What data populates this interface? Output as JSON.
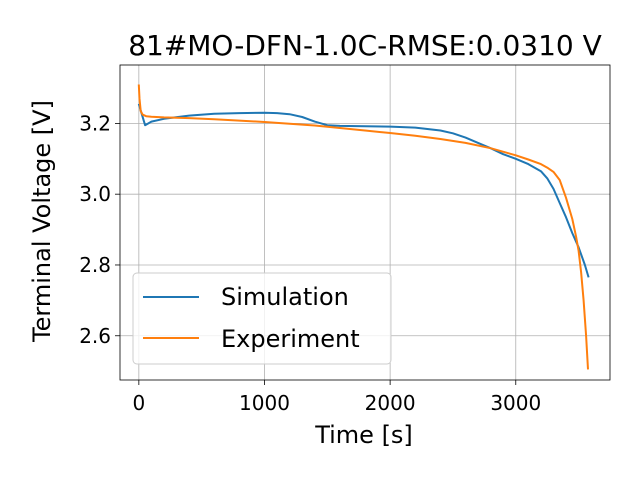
{
  "chart_data": {
    "type": "line",
    "title": "81#MO-DFN-1.0C-RMSE:0.0310 V",
    "xlabel": "Time [s]",
    "ylabel": "Terminal Voltage [V]",
    "xlim": [
      -150,
      3750
    ],
    "ylim": [
      2.475,
      3.365
    ],
    "xticks": [
      0,
      1000,
      2000,
      3000
    ],
    "xtick_labels": [
      "0",
      "1000",
      "2000",
      "3000"
    ],
    "yticks": [
      2.6,
      2.8,
      3.0,
      3.2
    ],
    "ytick_labels": [
      "2.6",
      "2.8",
      "3.0",
      "3.2"
    ],
    "grid": true,
    "legend_position": "lower-left",
    "series": [
      {
        "name": "Simulation",
        "color": "#1f77b4",
        "x": [
          0,
          20,
          50,
          100,
          200,
          400,
          600,
          800,
          1000,
          1100,
          1200,
          1300,
          1400,
          1500,
          1600,
          1800,
          2000,
          2200,
          2400,
          2500,
          2600,
          2700,
          2800,
          2900,
          3000,
          3100,
          3200,
          3250,
          3300,
          3350,
          3400,
          3450,
          3500,
          3550,
          3580
        ],
        "y": [
          3.255,
          3.23,
          3.195,
          3.205,
          3.213,
          3.222,
          3.227,
          3.229,
          3.23,
          3.229,
          3.226,
          3.218,
          3.205,
          3.195,
          3.193,
          3.192,
          3.191,
          3.188,
          3.18,
          3.172,
          3.16,
          3.145,
          3.13,
          3.113,
          3.1,
          3.085,
          3.065,
          3.045,
          3.015,
          2.975,
          2.935,
          2.89,
          2.85,
          2.8,
          2.765
        ]
      },
      {
        "name": "Experiment",
        "color": "#ff7f0e",
        "x": [
          0,
          5,
          15,
          30,
          60,
          100,
          200,
          400,
          600,
          800,
          1000,
          1200,
          1400,
          1600,
          1800,
          2000,
          2200,
          2400,
          2600,
          2800,
          3000,
          3100,
          3200,
          3250,
          3300,
          3350,
          3400,
          3450,
          3480,
          3500,
          3520,
          3540,
          3560,
          3575
        ],
        "y": [
          3.31,
          3.27,
          3.235,
          3.225,
          3.22,
          3.219,
          3.217,
          3.215,
          3.212,
          3.208,
          3.204,
          3.199,
          3.194,
          3.187,
          3.18,
          3.173,
          3.165,
          3.156,
          3.145,
          3.13,
          3.11,
          3.098,
          3.085,
          3.075,
          3.063,
          3.04,
          2.99,
          2.93,
          2.88,
          2.84,
          2.78,
          2.7,
          2.6,
          2.505
        ]
      }
    ]
  }
}
